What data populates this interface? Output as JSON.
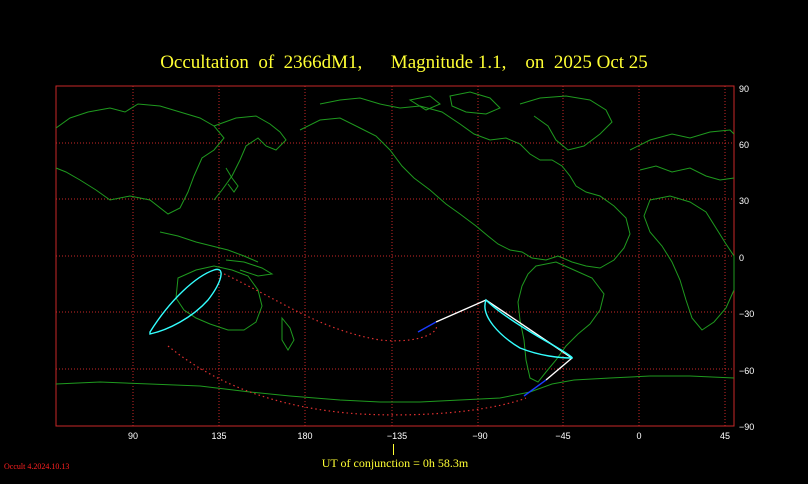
{
  "title": "Occultation  of  2366dM1,      Magnitude 1.1,    on  2025 Oct 25",
  "conjunction_label": "UT of conjunction =  0h 58.3m",
  "version": "Occult 4.2024.10.13",
  "colors": {
    "background": "#000000",
    "grid": "#c82828",
    "coast": "#1f9a1f",
    "title": "#ffff33",
    "path": "#ffffff",
    "path_segment": "#1a3cff",
    "limit": "#e03030",
    "ellipse": "#33ffff"
  },
  "map": {
    "longitude_ticks": [
      "90",
      "135",
      "180",
      "−135",
      "−90",
      "−45",
      "0",
      "45"
    ],
    "latitude_ticks": [
      "90",
      "60",
      "30",
      "0",
      "−30",
      "−60",
      "−90"
    ]
  }
}
